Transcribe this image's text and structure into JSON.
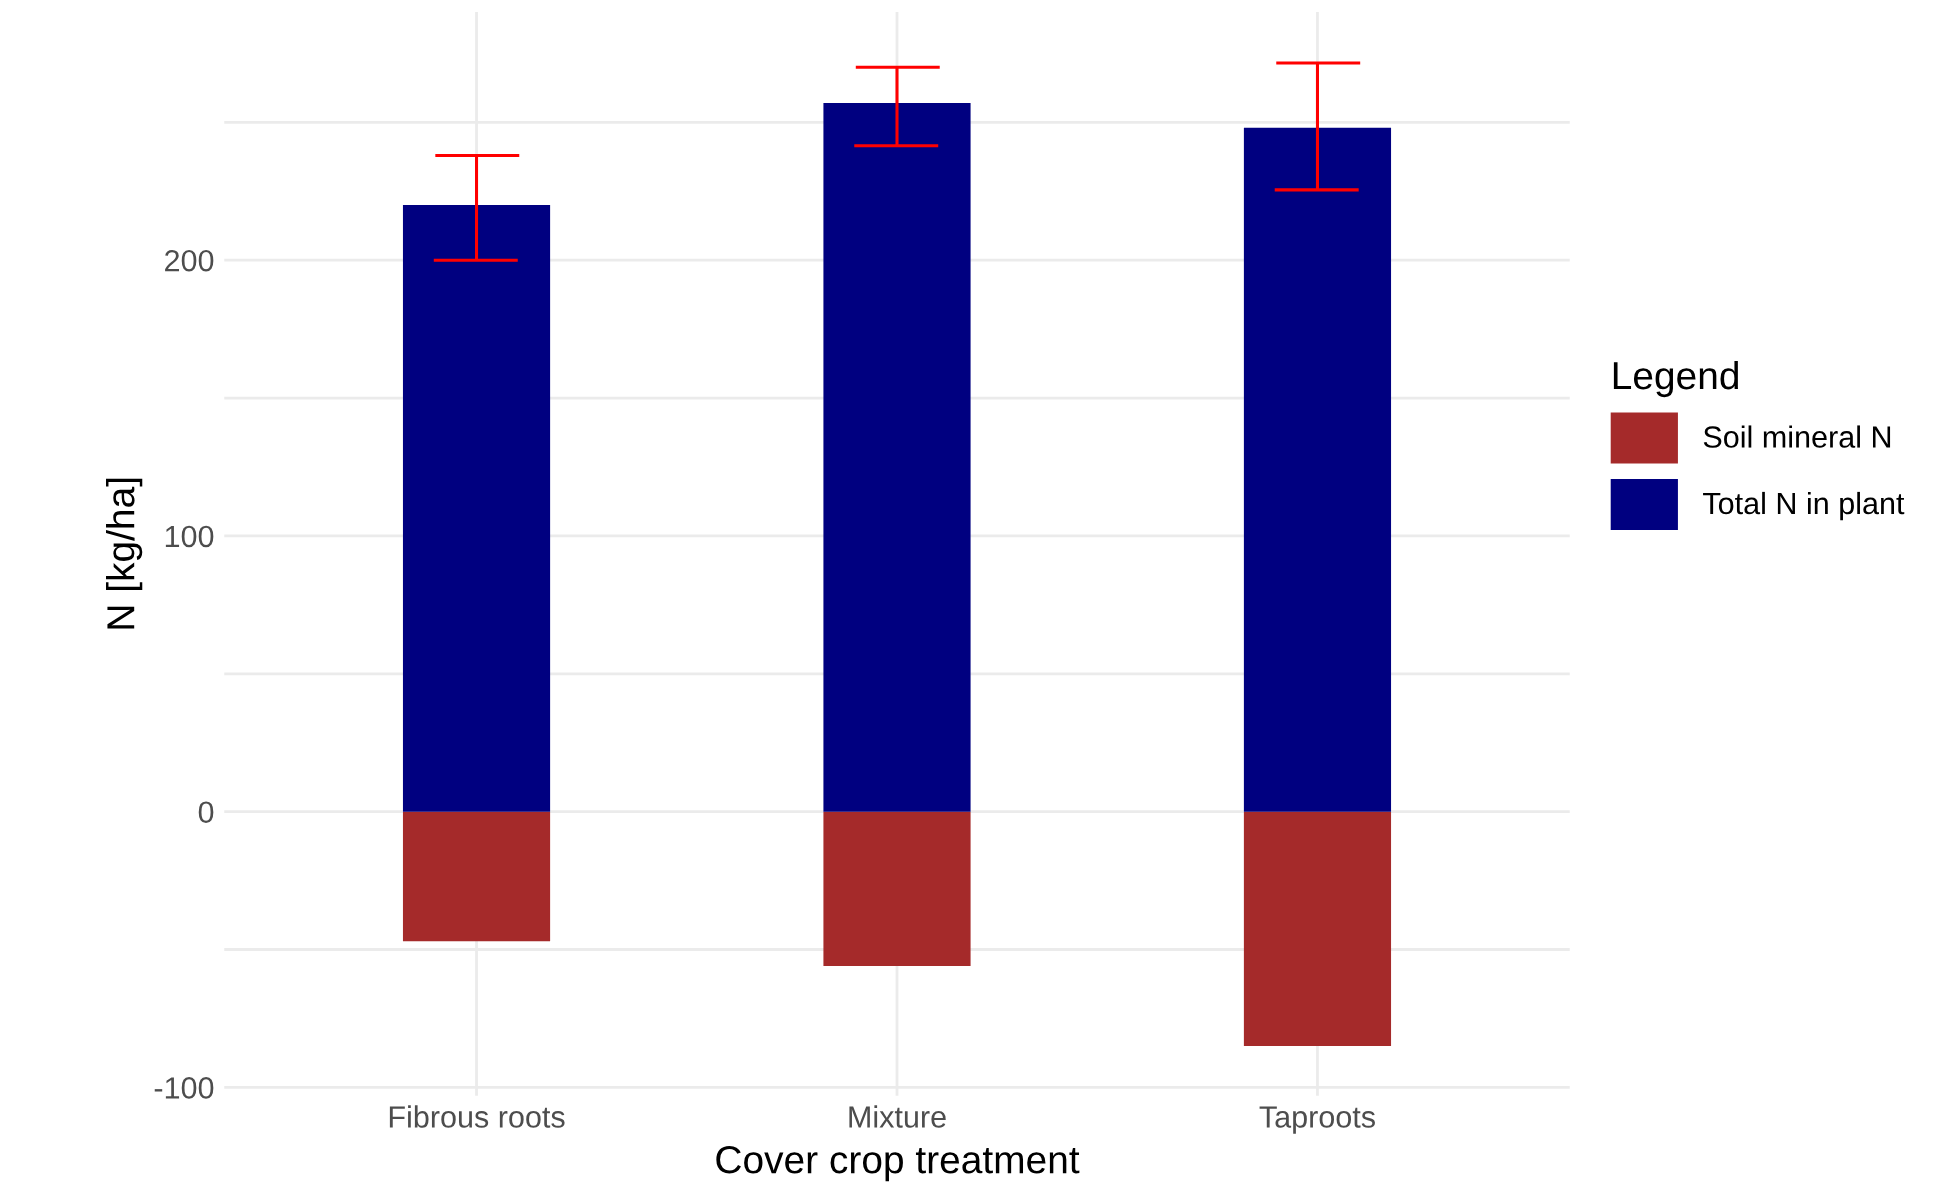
{
  "chart_data": {
    "type": "bar",
    "stacked": true,
    "xlabel": "Cover crop treatment",
    "ylabel": "N [kg/ha]",
    "legend_title": "Legend",
    "legend": "right",
    "grid": true,
    "categories": [
      "Fibrous roots",
      "Mixture",
      "Taproots"
    ],
    "series": [
      {
        "name": "Soil mineral N",
        "color": "#a52a2a",
        "values": [
          -47,
          -56,
          -85
        ]
      },
      {
        "name": "Total N in plant",
        "color": "#000080",
        "values": [
          220,
          257,
          248
        ],
        "errors": [
          [
            200,
            238
          ],
          [
            241.5,
            270
          ],
          [
            225.5,
            271.5
          ]
        ]
      }
    ],
    "ylim": [
      -103,
      290
    ],
    "yticks": [
      -100,
      {
        "value": -50,
        "label": null
      },
      0,
      {
        "value": 50,
        "label": null
      },
      100,
      {
        "value": 150,
        "label": null
      },
      200,
      {
        "value": 250,
        "label": null
      }
    ]
  }
}
